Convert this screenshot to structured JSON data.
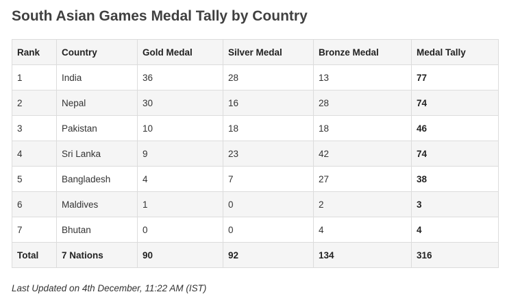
{
  "title": "South Asian Games Medal Tally by Country",
  "table": {
    "headers": {
      "rank": "Rank",
      "country": "Country",
      "gold": "Gold Medal",
      "silver": "Silver Medal",
      "bronze": "Bronze Medal",
      "total": "Medal Tally"
    },
    "rows": [
      {
        "rank": "1",
        "country": "India",
        "gold": "36",
        "silver": "28",
        "bronze": "13",
        "total": "77"
      },
      {
        "rank": "2",
        "country": "Nepal",
        "gold": "30",
        "silver": "16",
        "bronze": "28",
        "total": "74"
      },
      {
        "rank": "3",
        "country": "Pakistan",
        "gold": "10",
        "silver": "18",
        "bronze": "18",
        "total": "46"
      },
      {
        "rank": "4",
        "country": "Sri Lanka",
        "gold": "9",
        "silver": "23",
        "bronze": "42",
        "total": "74"
      },
      {
        "rank": "5",
        "country": "Bangladesh",
        "gold": "4",
        "silver": "7",
        "bronze": "27",
        "total": "38"
      },
      {
        "rank": "6",
        "country": "Maldives",
        "gold": "1",
        "silver": "0",
        "bronze": "2",
        "total": "3"
      },
      {
        "rank": "7",
        "country": "Bhutan",
        "gold": "0",
        "silver": "0",
        "bronze": "4",
        "total": "4"
      }
    ],
    "footer": {
      "rank": "Total",
      "country": "7 Nations",
      "gold": "90",
      "silver": "92",
      "bronze": "134",
      "total": "316"
    }
  },
  "footnote": "Last Updated on 4th December, 11:22 AM (IST)"
}
